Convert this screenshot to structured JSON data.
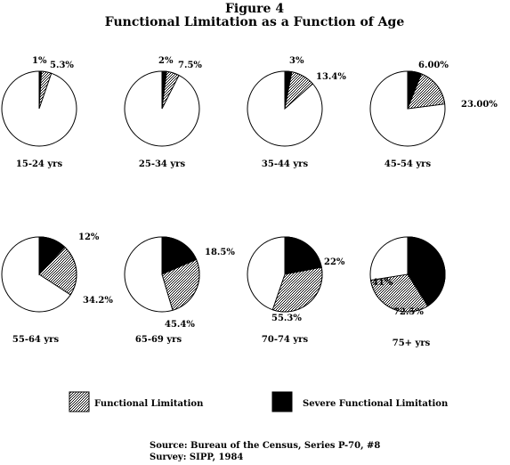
{
  "figure": {
    "number_label": "Figure 4",
    "title": "Functional Limitation as a Function of Age"
  },
  "chart_data": {
    "type": "pie",
    "title": "Functional Limitation as a Function of Age",
    "series_names": [
      "Functional Limitation",
      "Severe Functional Limitation"
    ],
    "pies": [
      {
        "category": "15-24 yrs",
        "functional_limitation": 5.3,
        "severe_functional_limitation": 1,
        "labels": {
          "functional": "5.3%",
          "severe": "1%",
          "remainder": ""
        }
      },
      {
        "category": "25-34 yrs",
        "functional_limitation": 7.5,
        "severe_functional_limitation": 2,
        "labels": {
          "functional": "7.5%",
          "severe": "2%",
          "remainder": ""
        }
      },
      {
        "category": "35-44 yrs",
        "functional_limitation": 13.4,
        "severe_functional_limitation": 3,
        "labels": {
          "functional": "13.4%",
          "severe": "3%",
          "remainder": ""
        }
      },
      {
        "category": "45-54 yrs",
        "functional_limitation": 23.0,
        "severe_functional_limitation": 6.0,
        "labels": {
          "functional": "23.00%",
          "severe": "6.00%",
          "remainder": ""
        }
      },
      {
        "category": "55-64 yrs",
        "functional_limitation": 34.2,
        "severe_functional_limitation": 12,
        "labels": {
          "functional": "34.2%",
          "severe": "12%",
          "remainder": ""
        }
      },
      {
        "category": "65-69 yrs",
        "functional_limitation": 45.4,
        "severe_functional_limitation": 18.5,
        "labels": {
          "functional": "45.4%",
          "severe": "18.5%",
          "remainder": ""
        }
      },
      {
        "category": "70-74 yrs",
        "functional_limitation": 55.3,
        "severe_functional_limitation": 22,
        "labels": {
          "functional": "55.3%",
          "severe": "22%",
          "remainder": ""
        }
      },
      {
        "category": "75+ yrs",
        "functional_limitation": 72.5,
        "severe_functional_limitation": 41,
        "labels": {
          "functional": "72.5%",
          "severe": "41%",
          "remainder": ""
        }
      }
    ]
  },
  "legend": {
    "functional": "Functional Limitation",
    "severe": "Severe Functional Limitation"
  },
  "source": {
    "line1": "Source: Bureau of the Census, Series P-70, #8",
    "line2": "Survey: SIPP, 1984"
  }
}
